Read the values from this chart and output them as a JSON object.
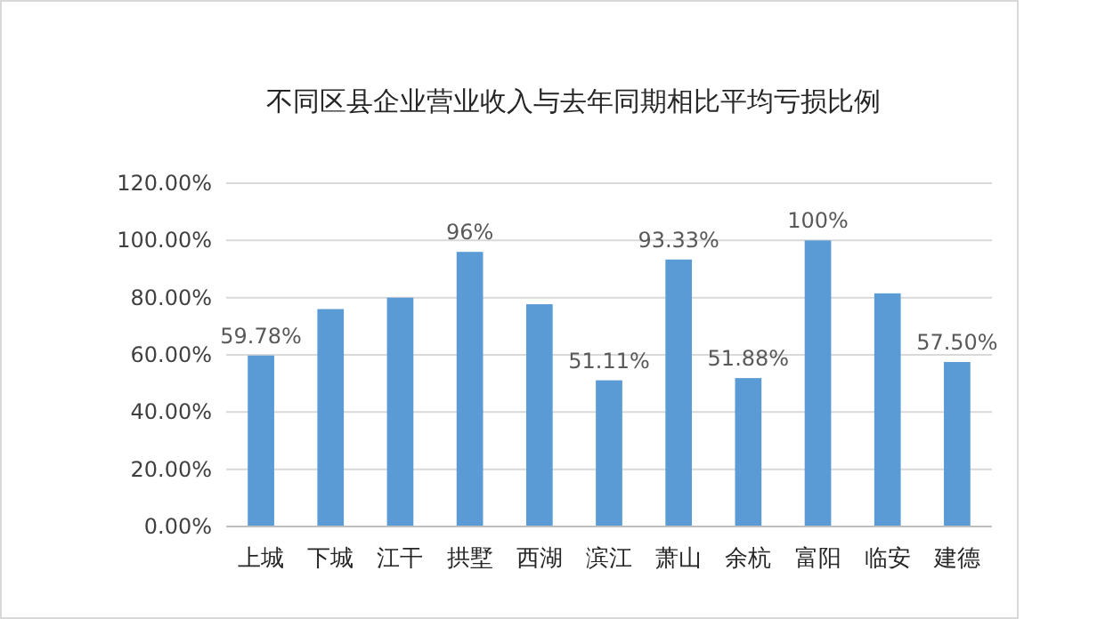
{
  "chart_data": {
    "type": "bar",
    "title": "不同区县企业营业收入与去年同期相比平均亏损比例",
    "categories": [
      "上城",
      "下城",
      "江干",
      "拱墅",
      "西湖",
      "滨江",
      "萧山",
      "余杭",
      "富阳",
      "临安",
      "建德"
    ],
    "series": [
      {
        "color": "#5b9bd5",
        "values": [
          59.78,
          76,
          80,
          96,
          77.7,
          51.11,
          93.33,
          51.88,
          100,
          81.5,
          57.5
        ],
        "value_labels": [
          "59.78%",
          null,
          null,
          "96%",
          null,
          "51.11%",
          "93.33%",
          "51.88%",
          "100%",
          null,
          "57.50%"
        ]
      }
    ],
    "ylim": [
      0,
      120
    ],
    "yticks": [
      {
        "value": 0,
        "label": "0.00%"
      },
      {
        "value": 20,
        "label": "20.00%"
      },
      {
        "value": 40,
        "label": "40.00%"
      },
      {
        "value": 60,
        "label": "60.00%"
      },
      {
        "value": 80,
        "label": "80.00%"
      },
      {
        "value": 100,
        "label": "100.00%"
      },
      {
        "value": 120,
        "label": "120.00%"
      }
    ],
    "grid": "y"
  }
}
